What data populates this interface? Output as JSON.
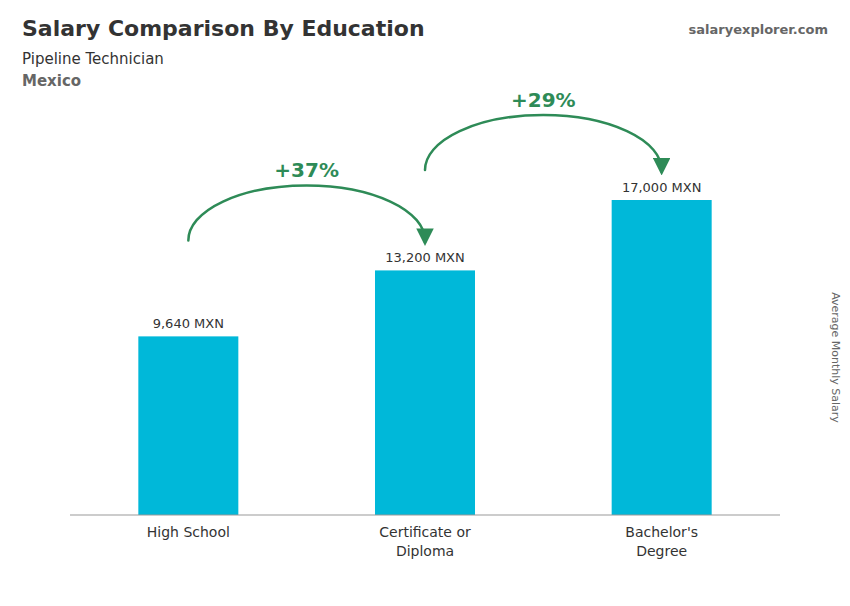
{
  "chart_data": {
    "type": "bar",
    "title": "Salary Comparison By Education",
    "subtitle": [
      "Pipeline Technician",
      "Mexico"
    ],
    "source": "salaryexplorer.com",
    "ylabel": "Average Monthly Salary",
    "categories": [
      "High School",
      "Certificate or\nDiploma",
      "Bachelor's\nDegree"
    ],
    "values": [
      9640,
      13200,
      17000
    ],
    "value_labels": [
      "9,640 MXN",
      "13,200 MXN",
      "17,000 MXN"
    ],
    "data_labels": true,
    "annotations": [
      "+37%",
      "+29%"
    ],
    "color": "#00b8d9",
    "ylim": [
      0,
      17000
    ],
    "tick_labels": false,
    "grid": false
  }
}
